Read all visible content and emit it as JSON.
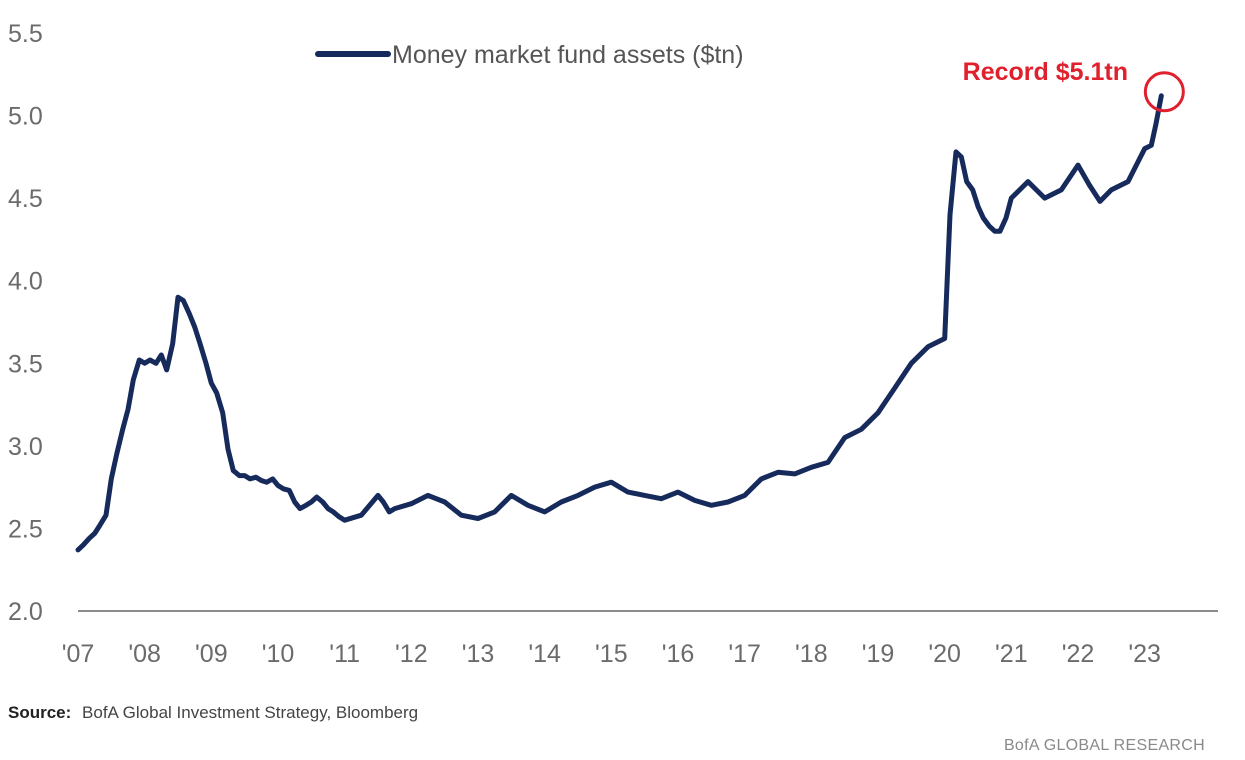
{
  "chart_data": {
    "type": "line",
    "title": "",
    "xlabel": "",
    "ylabel": "",
    "legend": {
      "label": "Money market fund assets ($tn)",
      "placement": "top-left"
    },
    "ylim": [
      2.0,
      5.5
    ],
    "yticks": [
      "2.0",
      "2.5",
      "3.0",
      "3.5",
      "4.0",
      "4.5",
      "5.0",
      "5.5"
    ],
    "xlim": [
      2007.0,
      2024.1
    ],
    "xticks": [
      "'07",
      "'08",
      "'09",
      "'10",
      "'11",
      "'12",
      "'13",
      "'14",
      "'15",
      "'16",
      "'17",
      "'18",
      "'19",
      "'20",
      "'21",
      "'22",
      "'23"
    ],
    "grid": false,
    "series": [
      {
        "name": "Money market fund assets ($tn)",
        "color": "#172a5c",
        "x": [
          2007.0,
          2007.08,
          2007.17,
          2007.25,
          2007.33,
          2007.42,
          2007.5,
          2007.58,
          2007.67,
          2007.75,
          2007.83,
          2007.92,
          2008.0,
          2008.08,
          2008.17,
          2008.25,
          2008.33,
          2008.42,
          2008.5,
          2008.58,
          2008.67,
          2008.75,
          2008.83,
          2008.92,
          2009.0,
          2009.08,
          2009.17,
          2009.25,
          2009.33,
          2009.42,
          2009.5,
          2009.58,
          2009.67,
          2009.75,
          2009.83,
          2009.92,
          2010.0,
          2010.08,
          2010.17,
          2010.25,
          2010.33,
          2010.42,
          2010.5,
          2010.58,
          2010.67,
          2010.75,
          2010.83,
          2010.92,
          2011.0,
          2011.25,
          2011.5,
          2011.58,
          2011.67,
          2011.75,
          2012.0,
          2012.25,
          2012.5,
          2012.75,
          2013.0,
          2013.25,
          2013.5,
          2013.75,
          2014.0,
          2014.25,
          2014.5,
          2014.75,
          2015.0,
          2015.25,
          2015.5,
          2015.75,
          2016.0,
          2016.25,
          2016.5,
          2016.75,
          2017.0,
          2017.25,
          2017.5,
          2017.75,
          2018.0,
          2018.25,
          2018.5,
          2018.75,
          2019.0,
          2019.25,
          2019.5,
          2019.75,
          2020.0,
          2020.08,
          2020.17,
          2020.25,
          2020.33,
          2020.42,
          2020.5,
          2020.58,
          2020.67,
          2020.75,
          2020.83,
          2020.92,
          2021.0,
          2021.25,
          2021.5,
          2021.75,
          2022.0,
          2022.17,
          2022.33,
          2022.5,
          2022.75,
          2023.0,
          2023.1,
          2023.17,
          2023.25
        ],
        "y": [
          2.37,
          2.4,
          2.44,
          2.47,
          2.52,
          2.58,
          2.8,
          2.95,
          3.1,
          3.22,
          3.4,
          3.52,
          3.5,
          3.52,
          3.5,
          3.55,
          3.46,
          3.62,
          3.9,
          3.88,
          3.8,
          3.72,
          3.62,
          3.5,
          3.38,
          3.32,
          3.2,
          2.98,
          2.85,
          2.82,
          2.82,
          2.8,
          2.81,
          2.79,
          2.78,
          2.8,
          2.76,
          2.74,
          2.73,
          2.66,
          2.62,
          2.64,
          2.66,
          2.69,
          2.66,
          2.62,
          2.6,
          2.57,
          2.55,
          2.58,
          2.7,
          2.66,
          2.6,
          2.62,
          2.65,
          2.7,
          2.66,
          2.58,
          2.56,
          2.6,
          2.7,
          2.64,
          2.6,
          2.66,
          2.7,
          2.75,
          2.78,
          2.72,
          2.7,
          2.68,
          2.72,
          2.67,
          2.64,
          2.66,
          2.7,
          2.8,
          2.84,
          2.83,
          2.87,
          2.9,
          3.05,
          3.1,
          3.2,
          3.35,
          3.5,
          3.6,
          3.65,
          4.4,
          4.78,
          4.75,
          4.6,
          4.55,
          4.45,
          4.38,
          4.33,
          4.3,
          4.3,
          4.38,
          4.5,
          4.6,
          4.5,
          4.55,
          4.7,
          4.58,
          4.48,
          4.55,
          4.6,
          4.8,
          4.82,
          4.95,
          5.12
        ]
      }
    ],
    "annotations": [
      {
        "text": "Record $5.1tn",
        "x": 2023.25,
        "y": 5.12,
        "color": "#e0202c"
      }
    ]
  },
  "footer": {
    "source_key": "Source:",
    "source_text": "BofA Global Investment Strategy, Bloomberg",
    "brand": "BofA GLOBAL RESEARCH"
  }
}
